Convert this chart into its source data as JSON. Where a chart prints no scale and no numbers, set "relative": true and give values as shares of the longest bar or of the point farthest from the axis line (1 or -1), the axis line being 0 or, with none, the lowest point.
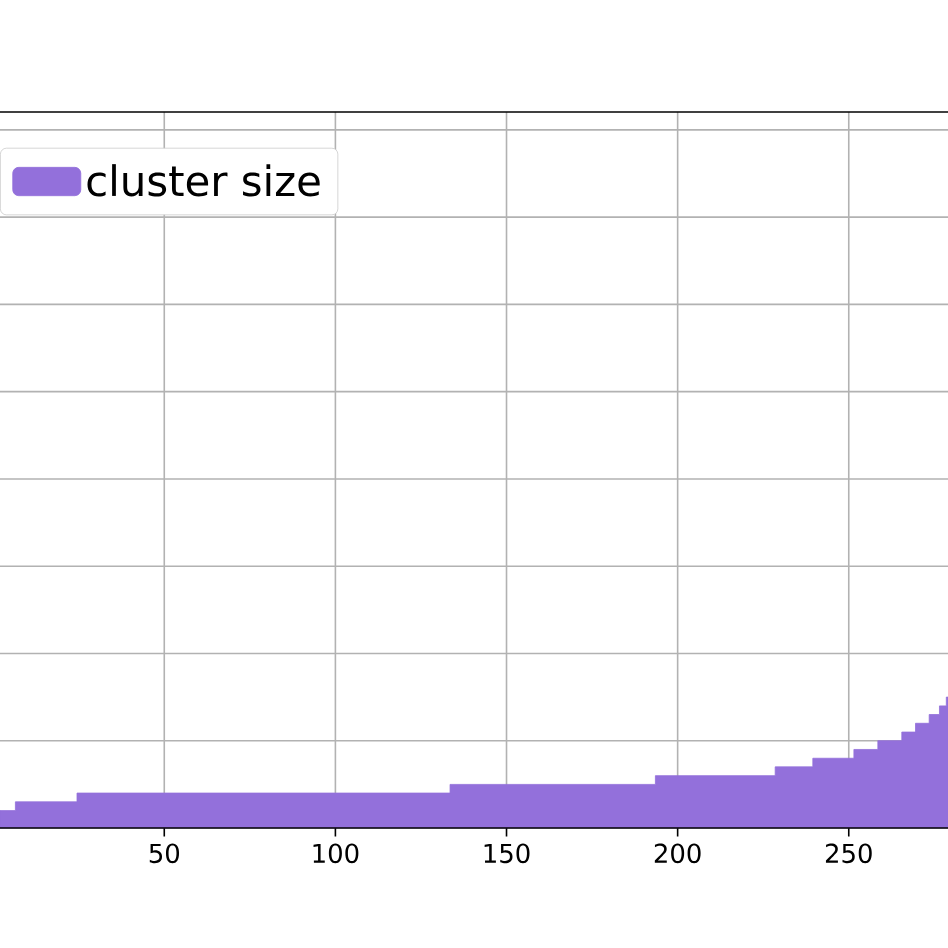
{
  "chart_data": {
    "type": "area",
    "relative": true,
    "x": [
      2,
      6.5,
      6.5,
      24.5,
      24.5,
      133.5,
      133.5,
      193.5,
      193.5,
      228.5,
      228.5,
      239.5,
      239.5,
      251.5,
      251.5,
      258.5,
      258.5,
      265.5,
      265.5,
      269.5,
      269.5,
      273.5,
      273.5,
      276.5,
      276.5,
      278.5,
      278.5,
      279
    ],
    "series": [
      {
        "name": "cluster size",
        "color": "#9370db",
        "values": [
          0.133,
          0.133,
          0.2,
          0.2,
          0.267,
          0.267,
          0.333,
          0.333,
          0.4,
          0.4,
          0.467,
          0.467,
          0.533,
          0.533,
          0.6,
          0.6,
          0.667,
          0.667,
          0.733,
          0.733,
          0.8,
          0.8,
          0.867,
          0.867,
          0.933,
          0.933,
          1,
          1
        ]
      }
    ],
    "xlim": [
      2,
      279
    ],
    "xticks": [
      50,
      100,
      150,
      200,
      250
    ],
    "grid": true,
    "legend": "top left"
  }
}
